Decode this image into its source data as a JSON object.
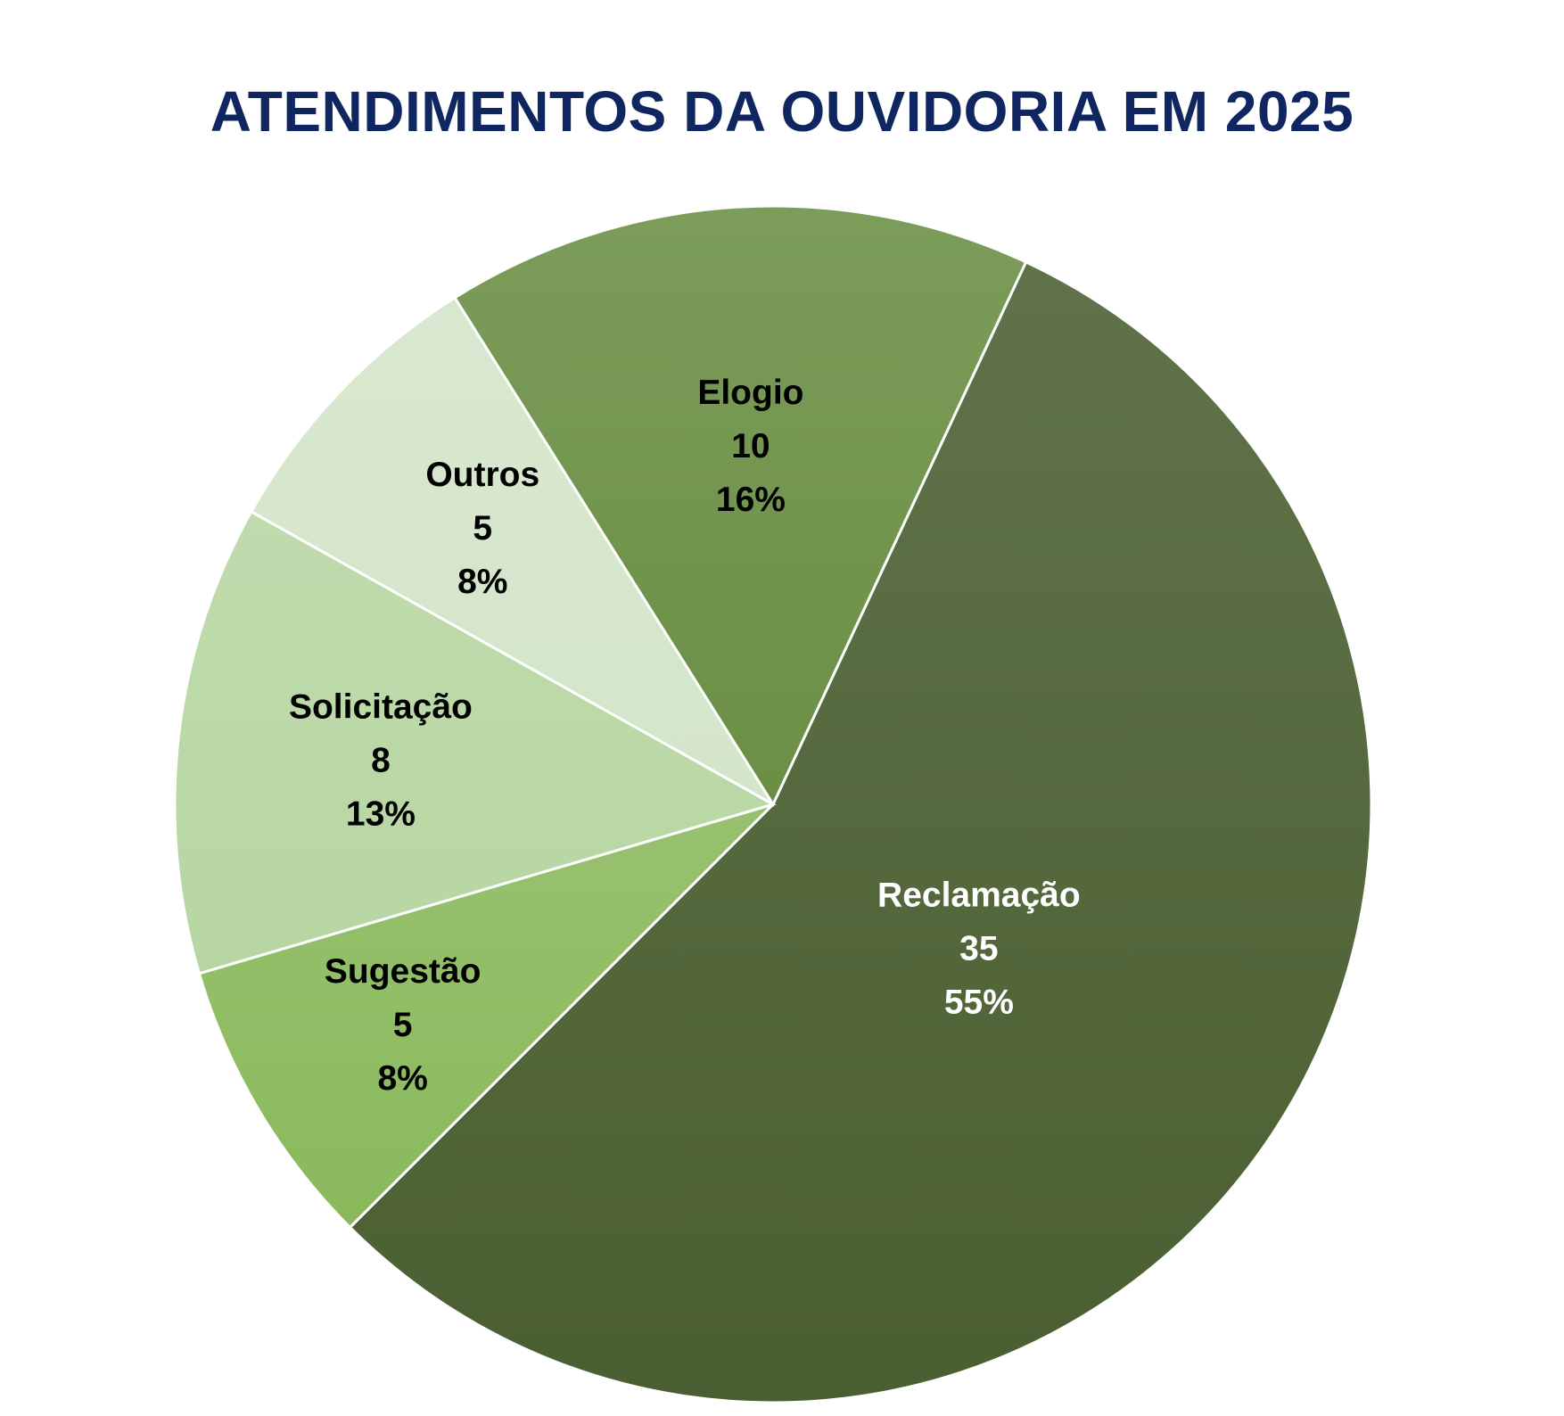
{
  "chart_data": {
    "type": "pie",
    "title": "ATENDIMENTOS DA OUVIDORIA EM 2025",
    "slices": [
      {
        "label": "Reclamação",
        "value": 35,
        "percent": "55%",
        "color": "#4a5f31",
        "label_color": "#ffffff"
      },
      {
        "label": "Sugestão",
        "value": 5,
        "percent": "8%",
        "color": "#8ab95c",
        "label_color": "#000000"
      },
      {
        "label": "Solicitação",
        "value": 8,
        "percent": "13%",
        "color": "#b7d6a2",
        "label_color": "#000000"
      },
      {
        "label": "Outros",
        "value": 5,
        "percent": "8%",
        "color": "#d3e5ca",
        "label_color": "#000000"
      },
      {
        "label": "Elogio",
        "value": 10,
        "percent": "16%",
        "color": "#6a8f44",
        "label_color": "#000000"
      }
    ]
  }
}
